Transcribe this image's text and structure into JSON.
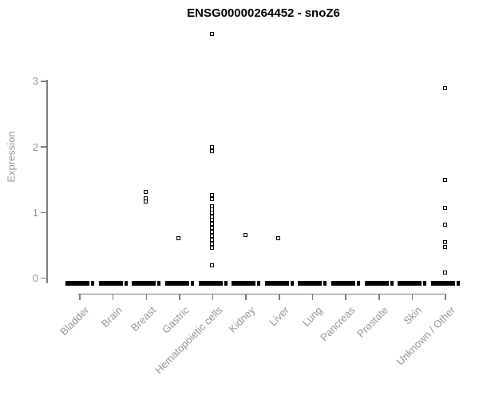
{
  "chart_data": {
    "type": "scatter",
    "title": "ENSG00000264452 - snoZ6",
    "ylabel": "Expression",
    "xlabel": "",
    "ylim": [
      0,
      3.9
    ],
    "yticks": [
      0,
      1,
      2,
      3
    ],
    "y_axis_drawn_range": [
      0,
      3
    ],
    "grid": false,
    "legend": null,
    "point_marker": "open-square",
    "categories": [
      "Bladder",
      "Brain",
      "Breast",
      "Gastric",
      "Hematopoietic cells",
      "Kidney",
      "Liver",
      "Lung",
      "Pancreas",
      "Prostate",
      "Skin",
      "Unknown / Other"
    ],
    "series": [
      {
        "category": "Bladder",
        "zero_cluster": true,
        "nonzero_values": []
      },
      {
        "category": "Brain",
        "zero_cluster": true,
        "nonzero_values": []
      },
      {
        "category": "Breast",
        "zero_cluster": true,
        "nonzero_values": [
          1.31,
          1.22,
          1.17
        ]
      },
      {
        "category": "Gastric",
        "zero_cluster": true,
        "nonzero_values": [
          0.61
        ]
      },
      {
        "category": "Hematopoietic cells",
        "zero_cluster": true,
        "nonzero_values": [
          3.72,
          2.0,
          1.94,
          1.26,
          1.2,
          1.1,
          1.05,
          1.0,
          0.94,
          0.89,
          0.83,
          0.77,
          0.71,
          0.65,
          0.58,
          0.52,
          0.46,
          0.2
        ]
      },
      {
        "category": "Kidney",
        "zero_cluster": true,
        "nonzero_values": [
          0.66
        ]
      },
      {
        "category": "Liver",
        "zero_cluster": true,
        "nonzero_values": [
          0.61
        ]
      },
      {
        "category": "Lung",
        "zero_cluster": true,
        "nonzero_values": []
      },
      {
        "category": "Pancreas",
        "zero_cluster": true,
        "nonzero_values": []
      },
      {
        "category": "Prostate",
        "zero_cluster": true,
        "nonzero_values": []
      },
      {
        "category": "Skin",
        "zero_cluster": true,
        "nonzero_values": []
      },
      {
        "category": "Unknown / Other",
        "zero_cluster": true,
        "nonzero_values": [
          2.9,
          1.5,
          1.07,
          0.81,
          0.55,
          0.48,
          0.08
        ]
      }
    ],
    "colors": {
      "title": "#000000",
      "axis_line": "#7d7d7d",
      "axis_text": "#969696",
      "point": "#000000"
    }
  }
}
